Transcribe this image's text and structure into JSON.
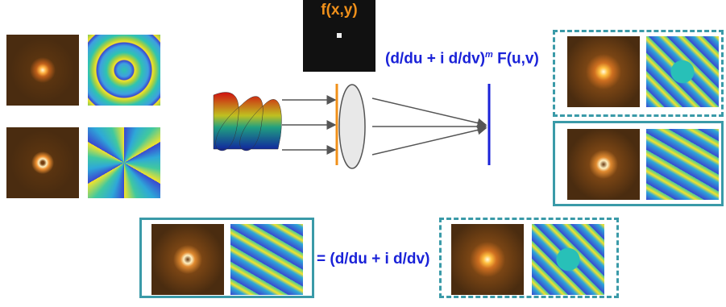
{
  "labels": {
    "object": "f(x,y)",
    "transform": {
      "operator": "(d/du + i d/dv)",
      "power": "m",
      "function": "F(u,v)"
    },
    "equation": "= (d/du + i d/dv)"
  }
}
